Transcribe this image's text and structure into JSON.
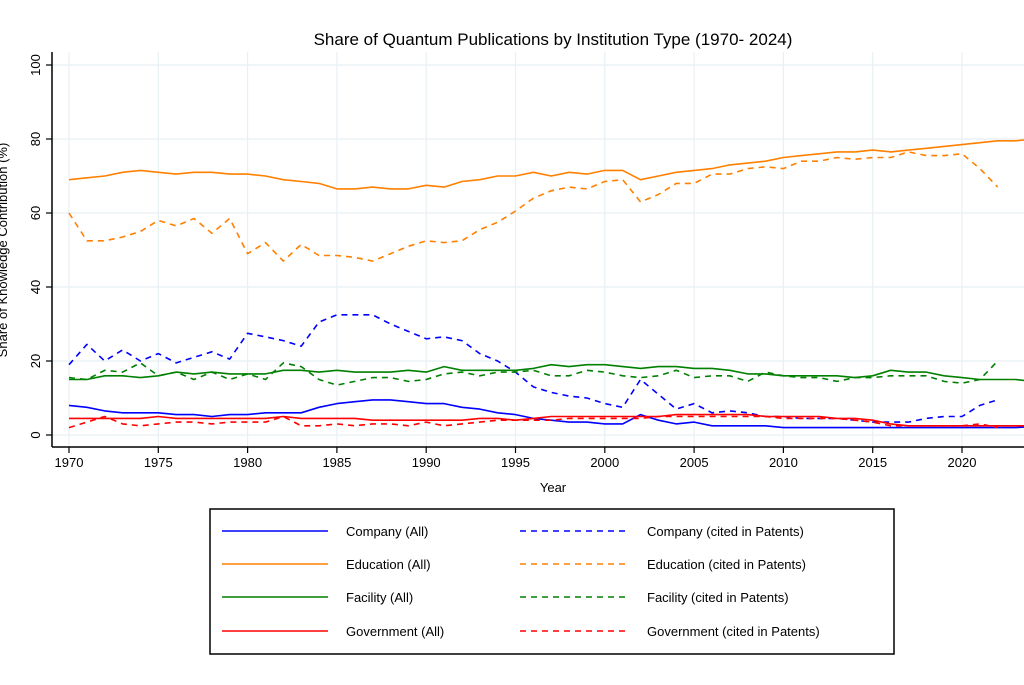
{
  "chart_data": {
    "type": "line",
    "title": "Share of Quantum Publications by Institution Type (1970- 2024)",
    "xlabel": "Year",
    "ylabel": "Share of Knowledge Contribution (%)",
    "xlim": [
      1969,
      2024.5
    ],
    "ylim": [
      0,
      100
    ],
    "xticks": [
      1970,
      1975,
      1980,
      1985,
      1990,
      1995,
      2000,
      2005,
      2010,
      2015,
      2020
    ],
    "yticks": [
      0,
      20,
      40,
      60,
      80,
      100
    ],
    "grid": true,
    "legend_placement": "bottom",
    "x_start": 1970,
    "series": [
      {
        "name": "Company (All)",
        "color": "#0000ff",
        "dash": false,
        "values": [
          8,
          7.5,
          6.5,
          6,
          6,
          6,
          5.5,
          5.5,
          5,
          5.5,
          5.5,
          6,
          6,
          6,
          7.5,
          8.5,
          9,
          9.5,
          9.5,
          9,
          8.5,
          8.5,
          7.5,
          7,
          6,
          5.5,
          4.5,
          4,
          3.5,
          3.5,
          3,
          3,
          5.5,
          4,
          3,
          3.5,
          2.5,
          2.5,
          2.5,
          2.5,
          2,
          2,
          2,
          2,
          2,
          2,
          2,
          2,
          2,
          2,
          2,
          2,
          2,
          2,
          2.3
        ]
      },
      {
        "name": "Company (cited in Patents)",
        "color": "#0000ff",
        "dash": true,
        "values": [
          19,
          24.5,
          20,
          23,
          20,
          22,
          19.5,
          21,
          22.5,
          20.5,
          27.5,
          26.5,
          25.5,
          24,
          30.5,
          32.5,
          32.5,
          32.5,
          30,
          28,
          26,
          26.5,
          25.5,
          22,
          20,
          17,
          13,
          11.5,
          10.5,
          10,
          8.5,
          7.5,
          15,
          11,
          7,
          8.5,
          6,
          6.5,
          6,
          5,
          5,
          4.5,
          4.5,
          4.5,
          4,
          3.5,
          3.5,
          3.5,
          4.5,
          5,
          5,
          8,
          9.5
        ]
      },
      {
        "name": "Education (All)",
        "color": "#ff8000",
        "dash": false,
        "values": [
          69,
          69.5,
          70,
          71,
          71.5,
          71,
          70.5,
          71,
          71,
          70.5,
          70.5,
          70,
          69,
          68.5,
          68,
          66.5,
          66.5,
          67,
          66.5,
          66.5,
          67.5,
          67,
          68.5,
          69,
          70,
          70,
          71,
          70,
          71,
          70.5,
          71.5,
          71.5,
          69,
          70,
          71,
          71.5,
          72,
          73,
          73.5,
          74,
          75,
          75.5,
          76,
          76.5,
          76.5,
          77,
          76.5,
          77,
          77.5,
          78,
          78.5,
          79,
          79.5,
          79.5,
          80
        ]
      },
      {
        "name": "Education (cited in Patents)",
        "color": "#ff8000",
        "dash": true,
        "values": [
          60,
          52.5,
          52.5,
          53.5,
          55,
          58,
          56.5,
          58.5,
          54.5,
          58.5,
          49,
          52,
          47,
          51.5,
          48.5,
          48.5,
          48,
          47,
          49,
          51,
          52.5,
          52,
          52.5,
          55.5,
          57.5,
          60.5,
          64,
          66,
          67,
          66.5,
          68.5,
          69,
          63,
          65,
          68,
          68,
          70.5,
          70.5,
          72,
          72.5,
          72,
          74,
          74,
          75,
          74.5,
          75,
          75,
          76.5,
          75.5,
          75.5,
          76,
          72,
          67
        ]
      },
      {
        "name": "Facility (All)",
        "color": "#008000",
        "dash": false,
        "values": [
          15,
          15,
          16,
          16,
          15.5,
          16,
          17,
          16.5,
          17,
          16.5,
          16.5,
          16.5,
          17.5,
          17.5,
          17,
          17.5,
          17,
          17,
          17,
          17.5,
          17,
          18.5,
          17.5,
          17.5,
          17.5,
          17.5,
          18,
          19,
          18.5,
          19,
          19,
          18.5,
          18,
          18.5,
          18.5,
          18,
          18,
          17.5,
          16.5,
          16.5,
          16,
          16,
          16,
          16,
          15.5,
          16,
          17.5,
          17,
          17,
          16,
          15.5,
          15,
          15,
          15,
          14.5
        ]
      },
      {
        "name": "Facility (cited in Patents)",
        "color": "#008000",
        "dash": true,
        "values": [
          15.5,
          15,
          17.5,
          17,
          19.5,
          16,
          17,
          15,
          17,
          15,
          16.5,
          15,
          19.5,
          18.5,
          15,
          13.5,
          14.5,
          15.5,
          15.5,
          14.5,
          15,
          16.5,
          17,
          16,
          17,
          17,
          17.5,
          16,
          16,
          17.5,
          17,
          16,
          15.5,
          16,
          17.5,
          15.5,
          16,
          16,
          14.5,
          17,
          16,
          15.5,
          15.5,
          14.5,
          15.5,
          15.5,
          16,
          16,
          16,
          14.5,
          14,
          15,
          20
        ]
      },
      {
        "name": "Government (All)",
        "color": "#ff0000",
        "dash": false,
        "values": [
          4.5,
          4.5,
          4.5,
          4.5,
          4.5,
          5,
          4.5,
          4.5,
          4.5,
          4.5,
          4.5,
          4.5,
          5,
          4.5,
          4.5,
          4.5,
          4.5,
          4,
          4,
          4,
          4,
          4,
          4,
          4.5,
          4.5,
          4,
          4.5,
          5,
          5,
          5,
          5,
          5,
          5,
          5,
          5.5,
          5.5,
          5.5,
          5.5,
          5.5,
          5,
          5,
          5,
          5,
          4.5,
          4.5,
          4,
          3,
          2.5,
          2.5,
          2.5,
          2.5,
          2.5,
          2.5,
          2.5,
          2.5
        ]
      },
      {
        "name": "Government (cited in Patents)",
        "color": "#ff0000",
        "dash": true,
        "values": [
          2,
          3.5,
          5,
          3,
          2.5,
          3,
          3.5,
          3.5,
          3,
          3.5,
          3.5,
          3.5,
          5,
          2.5,
          2.5,
          3,
          2.5,
          3,
          3,
          2.5,
          3.5,
          2.5,
          3,
          3.5,
          4,
          4,
          4,
          4,
          4.5,
          4.5,
          4.5,
          4.5,
          4.5,
          5,
          5,
          5,
          5,
          5,
          5,
          5,
          4.5,
          4.5,
          4.5,
          4.5,
          4,
          3.5,
          2.5,
          2.5,
          2.5,
          2.5,
          2.5,
          3,
          2
        ]
      }
    ],
    "legend_order": [
      0,
      1,
      2,
      3,
      4,
      5,
      6,
      7
    ]
  }
}
